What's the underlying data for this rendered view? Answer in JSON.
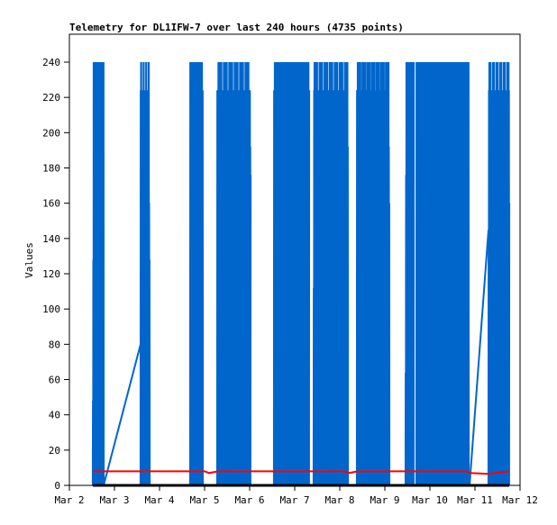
{
  "chart_data": {
    "type": "line",
    "title": "Telemetry for DL1IFW-7 over last 240 hours (4735 points)",
    "xlabel": "",
    "ylabel": "Values",
    "ylim": [
      0,
      255
    ],
    "xlim_days": [
      0,
      10
    ],
    "x_ticks": [
      "Mar 2",
      "Mar 3",
      "Mar 4",
      "Mar 5",
      "Mar 6",
      "Mar 7",
      "Mar 8",
      "Mar 9",
      "Mar 10",
      "Mar 11",
      "Mar 12"
    ],
    "y_ticks": [
      0,
      20,
      40,
      60,
      80,
      100,
      120,
      140,
      160,
      180,
      200,
      220,
      240
    ],
    "grid": false,
    "series": [
      {
        "name": "blue",
        "color": "#0066cc",
        "bursts": [
          {
            "start": 0.52,
            "end": 0.76,
            "peaks": [
              48,
              128,
              240,
              192,
              208,
              176,
              240,
              112,
              176
            ]
          },
          {
            "start": 1.58,
            "end": 1.78,
            "peaks": [
              224,
              240,
              160,
              128,
              224,
              192,
              224
            ]
          },
          {
            "start": 2.68,
            "end": 2.96,
            "peaks": [
              240,
              112,
              224,
              80,
              208,
              240,
              192,
              160
            ]
          },
          {
            "start": 3.28,
            "end": 4.02,
            "peaks": [
              224,
              192,
              176,
              240,
              168,
              224,
              208,
              240,
              192,
              224,
              176,
              240,
              200,
              224,
              160
            ]
          },
          {
            "start": 4.54,
            "end": 5.32,
            "peaks": [
              224,
              96,
              240,
              224,
              208,
              240,
              176,
              224,
              240,
              192,
              208,
              224,
              240,
              160,
              224
            ]
          },
          {
            "start": 5.42,
            "end": 6.18,
            "peaks": [
              112,
              224,
              240,
              176,
              240,
              208,
              144,
              224,
              208,
              240,
              192,
              160,
              224,
              80
            ]
          },
          {
            "start": 6.38,
            "end": 7.1,
            "peaks": [
              224,
              192,
              240,
              64,
              240,
              208,
              224,
              32,
              176,
              240,
              192,
              160,
              32
            ]
          },
          {
            "start": 7.46,
            "end": 7.64,
            "peaks": [
              64,
              176,
              240,
              16,
              224
            ]
          },
          {
            "start": 7.7,
            "end": 8.86,
            "peaks": [
              240,
              224,
              176,
              240,
              192,
              240,
              160,
              224,
              240,
              208,
              176,
              240,
              224,
              192,
              240,
              144,
              224,
              192,
              160
            ]
          },
          {
            "start": 9.3,
            "end": 9.76,
            "peaks": [
              144,
              224,
              240,
              208,
              192,
              240,
              224,
              160,
              128,
              192
            ]
          }
        ],
        "links": [
          [
            [
              0.76,
              0
            ],
            [
              1.6,
              82
            ]
          ],
          [
            [
              8.2,
              16
            ],
            [
              8.76,
              16
            ]
          ],
          [
            [
              8.88,
              0
            ],
            [
              9.3,
              145
            ]
          ]
        ]
      },
      {
        "name": "red",
        "color": "#ff0000",
        "points": [
          [
            0.52,
            8
          ],
          [
            3.0,
            8
          ],
          [
            3.1,
            7
          ],
          [
            3.3,
            8
          ],
          [
            6.1,
            8
          ],
          [
            6.2,
            7
          ],
          [
            6.4,
            8
          ],
          [
            8.8,
            8
          ],
          [
            8.9,
            7
          ],
          [
            9.3,
            6.5
          ],
          [
            9.76,
            8
          ]
        ]
      },
      {
        "name": "black",
        "color": "#000000",
        "points": [
          [
            0.52,
            0
          ],
          [
            9.76,
            0
          ]
        ]
      }
    ]
  }
}
